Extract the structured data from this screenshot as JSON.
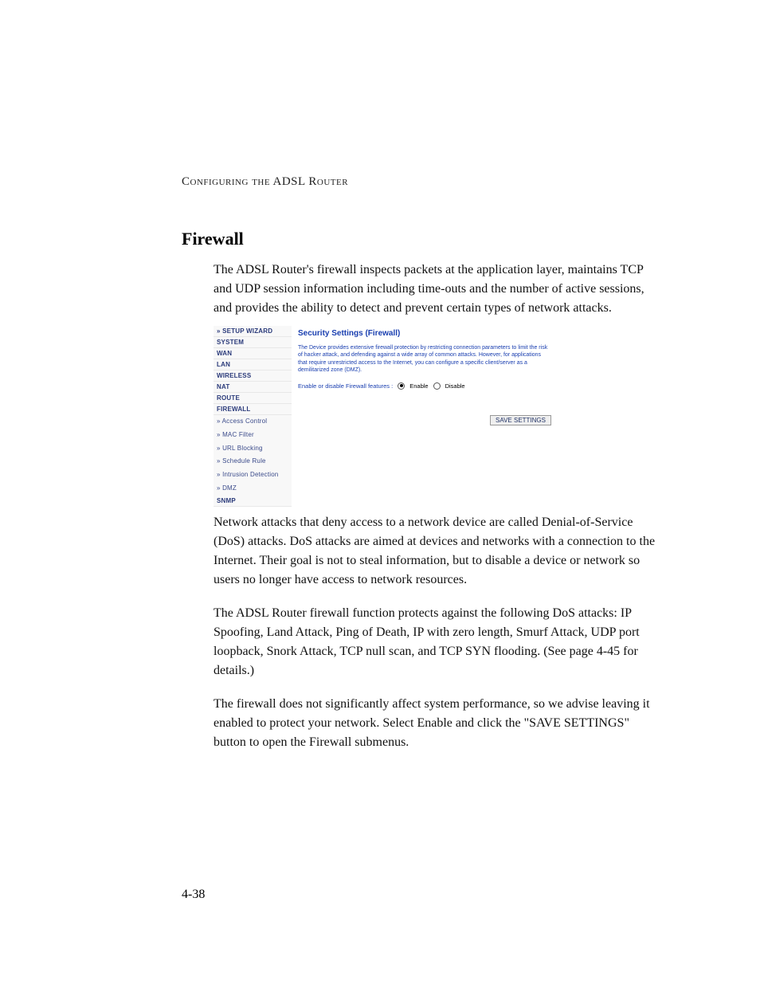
{
  "header": {
    "running": "Configuring the ADSL Router"
  },
  "title": "Firewall",
  "paragraphs": {
    "intro": "The ADSL Router's firewall inspects packets at the application layer, maintains TCP and UDP session information including time-outs and the number of active sessions, and provides the ability to detect and prevent certain types of network attacks.",
    "p1": "Network attacks that deny access to a network device are called Denial-of-Service (DoS) attacks. DoS attacks are aimed at devices and networks with a connection to the Internet. Their goal is not to steal information, but to disable a device or network so users no longer have access to network resources.",
    "p2": "The ADSL Router firewall function protects against the following DoS attacks: IP Spoofing, Land Attack, Ping of Death, IP with zero length, Smurf Attack, UDP port loopback, Snork Attack, TCP null scan, and TCP SYN flooding. (See  page 4-45 for details.)",
    "p3": "The firewall does not significantly affect system performance, so we advise leaving it enabled to protect your network. Select Enable and click the \"SAVE SETTINGS\" button to open the Firewall submenus."
  },
  "screenshot": {
    "sidebar": {
      "items": [
        "» SETUP WIZARD",
        "SYSTEM",
        "WAN",
        "LAN",
        "WIRELESS",
        "NAT",
        "ROUTE",
        "FIREWALL"
      ],
      "subitems": [
        "» Access Control",
        "» MAC Filter",
        "» URL Blocking",
        "» Schedule Rule",
        "» Intrusion Detection",
        "» DMZ"
      ],
      "tail": "SNMP"
    },
    "pane": {
      "title": "Security Settings (Firewall)",
      "desc": "The Device provides extensive firewall protection by restricting connection parameters to limit the risk of hacker attack, and defending against a wide array of common attacks. However, for applications that require unrestricted access to the Internet, you can configure a specific client/server as a demilitarized zone (DMZ).",
      "radio_label": "Enable or disable Firewall features :",
      "enable": "Enable",
      "disable": "Disable",
      "save": "SAVE SETTINGS"
    }
  },
  "page_number": "4-38",
  "colors": {
    "link_blue": "#1a3fb0",
    "sidebar_text": "#2a3a7a"
  }
}
